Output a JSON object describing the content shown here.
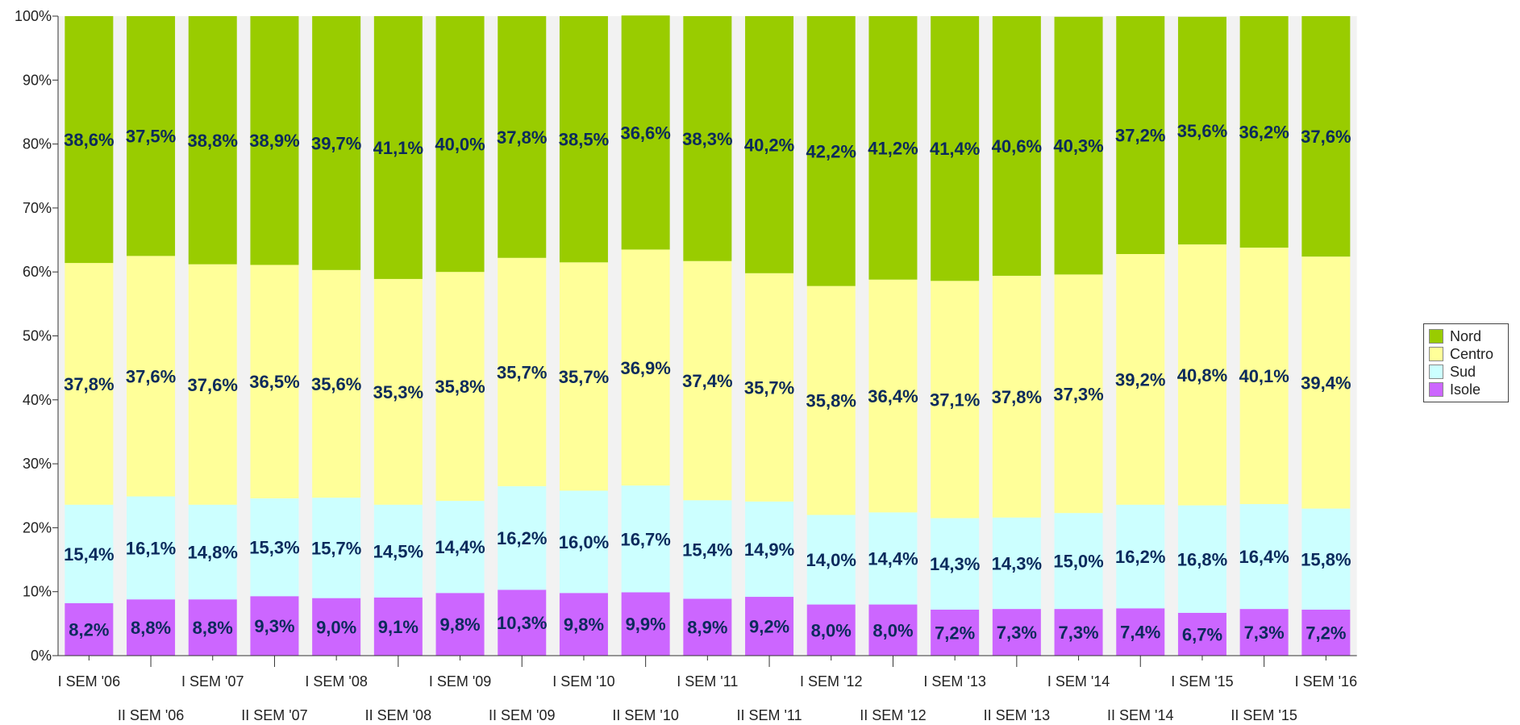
{
  "chart_data": {
    "type": "bar",
    "stacked": "percent",
    "title": "",
    "xlabel": "",
    "ylabel": "",
    "ylim": [
      0,
      100
    ],
    "y_ticks": [
      "0%",
      "10%",
      "20%",
      "30%",
      "40%",
      "50%",
      "60%",
      "70%",
      "80%",
      "90%",
      "100%"
    ],
    "categories": [
      "I SEM '06",
      "II SEM '06",
      "I SEM '07",
      "II SEM '07",
      "I SEM '08",
      "II SEM '08",
      "I SEM '09",
      "II SEM '09",
      "I SEM '10",
      "II SEM '10",
      "I SEM '11",
      "II SEM '11",
      "I SEM '12",
      "II SEM '12",
      "I SEM '13",
      "II SEM '13",
      "I SEM '14",
      "II SEM '14",
      "I SEM '15",
      "II SEM '15",
      "I SEM '16"
    ],
    "series": [
      {
        "name": "Isole",
        "color": "#cc66ff",
        "values": [
          8.2,
          8.8,
          8.8,
          9.3,
          9.0,
          9.1,
          9.8,
          10.3,
          9.8,
          9.9,
          8.9,
          9.2,
          8.0,
          8.0,
          7.2,
          7.3,
          7.3,
          7.4,
          6.7,
          7.3,
          7.2
        ],
        "labels": [
          "8,2%",
          "8,8%",
          "8,8%",
          "9,3%",
          "9,0%",
          "9,1%",
          "9,8%",
          "10,3%",
          "9,8%",
          "9,9%",
          "8,9%",
          "9,2%",
          "8,0%",
          "8,0%",
          "7,2%",
          "7,3%",
          "7,3%",
          "7,4%",
          "6,7%",
          "7,3%",
          "7,2%"
        ]
      },
      {
        "name": "Sud",
        "color": "#ccffff",
        "values": [
          15.4,
          16.1,
          14.8,
          15.3,
          15.7,
          14.5,
          14.4,
          16.2,
          16.0,
          16.7,
          15.4,
          14.9,
          14.0,
          14.4,
          14.3,
          14.3,
          15.0,
          16.2,
          16.8,
          16.4,
          15.8
        ],
        "labels": [
          "15,4%",
          "16,1%",
          "14,8%",
          "15,3%",
          "15,7%",
          "14,5%",
          "14,4%",
          "16,2%",
          "16,0%",
          "16,7%",
          "15,4%",
          "14,9%",
          "14,0%",
          "14,4%",
          "14,3%",
          "14,3%",
          "15,0%",
          "16,2%",
          "16,8%",
          "16,4%",
          "15,8%"
        ]
      },
      {
        "name": "Centro",
        "color": "#ffff99",
        "values": [
          37.8,
          37.6,
          37.6,
          36.5,
          35.6,
          35.3,
          35.8,
          35.7,
          35.7,
          36.9,
          37.4,
          35.7,
          35.8,
          36.4,
          37.1,
          37.8,
          37.3,
          39.2,
          40.8,
          40.1,
          39.4
        ],
        "labels": [
          "37,8%",
          "37,6%",
          "37,6%",
          "36,5%",
          "35,6%",
          "35,3%",
          "35,8%",
          "35,7%",
          "35,7%",
          "36,9%",
          "37,4%",
          "35,7%",
          "35,8%",
          "36,4%",
          "37,1%",
          "37,8%",
          "37,3%",
          "39,2%",
          "40,8%",
          "40,1%",
          "39,4%"
        ]
      },
      {
        "name": "Nord",
        "color": "#99cc00",
        "values": [
          38.6,
          37.5,
          38.8,
          38.9,
          39.7,
          41.1,
          40.0,
          37.8,
          38.5,
          36.6,
          38.3,
          40.2,
          42.2,
          41.2,
          41.4,
          40.6,
          40.3,
          37.2,
          35.6,
          36.2,
          37.6
        ],
        "labels": [
          "38,6%",
          "37,5%",
          "38,8%",
          "38,9%",
          "39,7%",
          "41,1%",
          "40,0%",
          "37,8%",
          "38,5%",
          "36,6%",
          "38,3%",
          "40,2%",
          "42,2%",
          "41,2%",
          "41,4%",
          "40,6%",
          "40,3%",
          "37,2%",
          "35,6%",
          "36,2%",
          "37,6%"
        ]
      }
    ],
    "legend": {
      "placement": "right",
      "order": [
        "Nord",
        "Centro",
        "Sud",
        "Isole"
      ]
    },
    "grid": false
  }
}
